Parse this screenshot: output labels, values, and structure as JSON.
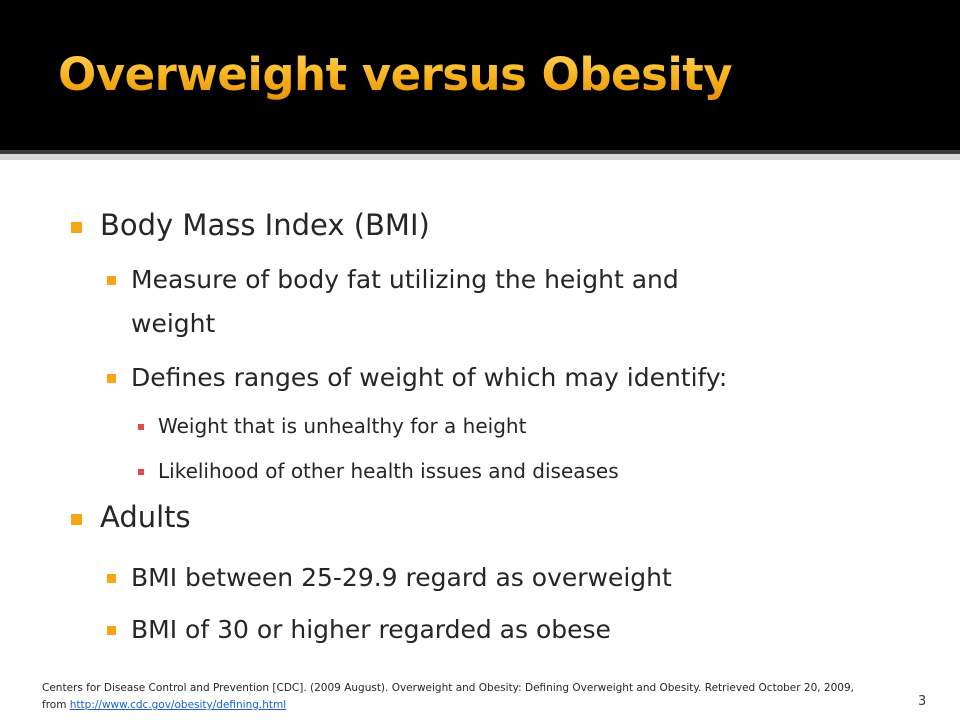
{
  "slide": {
    "title": "Overweight versus Obesity",
    "colors": {
      "header_bg": "#000000",
      "title": "#f5a516",
      "bullet": "#f5a516",
      "text": "#262626",
      "link": "#1a5fd0"
    },
    "bullets": [
      {
        "level": 1,
        "text": "Body Mass Index (BMI)"
      },
      {
        "level": 2,
        "text": "Measure of body fat utilizing the height and"
      },
      {
        "level": 2,
        "text": "weight"
      },
      {
        "level": 2,
        "text": "Defines ranges of weight of which may identify:"
      },
      {
        "level": 3,
        "text": "Weight that is unhealthy for a height"
      },
      {
        "level": 3,
        "text": "Likelihood of other health issues and diseases"
      },
      {
        "level": 1,
        "text": "Adults"
      },
      {
        "level": 2,
        "text": "BMI between 25-29.9 regard as overweight"
      },
      {
        "level": 2,
        "text": "BMI of 30 or higher  regarded as obese"
      }
    ],
    "footer": {
      "citation_line1": "Centers for Disease Control and Prevention [CDC]. (2009 August). Overweight and Obesity: Defining Overweight and Obesity. Retrieved October 20, 2009,",
      "citation_prefix": "from ",
      "link_text": "http://www.cdc.gov/obesity/defining.html"
    },
    "slide_number": "3"
  }
}
